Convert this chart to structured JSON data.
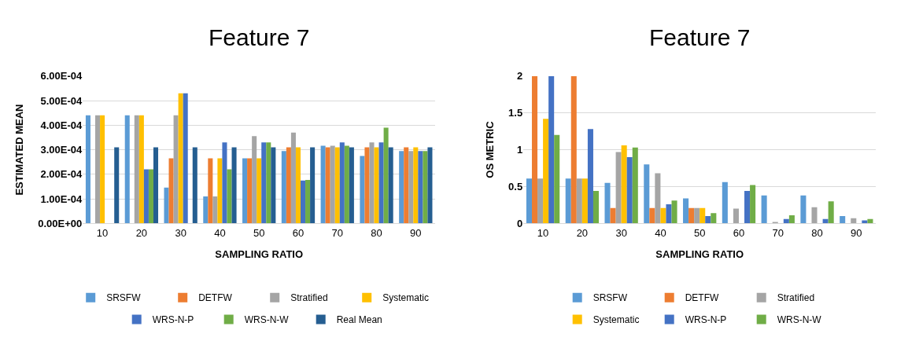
{
  "chart_data": [
    {
      "type": "bar",
      "title": "Feature 7",
      "xlabel": "SAMPLING RATIO",
      "ylabel": "ESTIMATED MEAN",
      "categories": [
        "10",
        "20",
        "30",
        "40",
        "50",
        "60",
        "70",
        "80",
        "90"
      ],
      "series": [
        {
          "name": "SRSFW",
          "color": "#5b9bd5",
          "values": [
            0.00044,
            0.00044,
            0.000146,
            0.00011,
            0.000265,
            0.000295,
            0.000316,
            0.000275,
            0.000295
          ]
        },
        {
          "name": "DETFW",
          "color": "#ed7d31",
          "values": [
            0,
            0,
            0.000265,
            0.000265,
            0.000265,
            0.00031,
            0.00031,
            0.00031,
            0.00031
          ]
        },
        {
          "name": "Stratified",
          "color": "#a5a5a5",
          "values": [
            0.00044,
            0.00044,
            0.00044,
            0.00011,
            0.000355,
            0.00037,
            0.000316,
            0.00033,
            0.000295
          ]
        },
        {
          "name": "Systematic",
          "color": "#ffc000",
          "values": [
            0.00044,
            0.00044,
            0.00053,
            0.000265,
            0.000265,
            0.00031,
            0.00031,
            0.00031,
            0.00031
          ]
        },
        {
          "name": "WRS-N-P",
          "color": "#4472c4",
          "values": [
            0,
            0.00022,
            0.00053,
            0.00033,
            0.00033,
            0.000175,
            0.00033,
            0.00033,
            0.000295
          ]
        },
        {
          "name": "WRS-N-W",
          "color": "#70ad47",
          "values": [
            0,
            0.00022,
            0,
            0.00022,
            0.00033,
            0.000177,
            0.000316,
            0.00039,
            0.000295
          ]
        },
        {
          "name": "Real Mean",
          "color": "#255e91",
          "values": [
            0.00031,
            0.00031,
            0.00031,
            0.00031,
            0.00031,
            0.00031,
            0.00031,
            0.00031,
            0.00031
          ]
        }
      ],
      "ylim": [
        0,
        0.0006
      ],
      "yticks": [
        {
          "value": 0,
          "label": "0.00E+00"
        },
        {
          "value": 0.0001,
          "label": "1.00E-04"
        },
        {
          "value": 0.0002,
          "label": "2.00E-04"
        },
        {
          "value": 0.0003,
          "label": "3.00E-04"
        },
        {
          "value": 0.0004,
          "label": "4.00E-04"
        },
        {
          "value": 0.0005,
          "label": "5.00E-04"
        },
        {
          "value": 0.0006,
          "label": "6.00E-04"
        }
      ],
      "grid": "y",
      "legend": "bottom"
    },
    {
      "type": "bar",
      "title": "Feature 7",
      "xlabel": "SAMPLING RATIO",
      "ylabel": "OS METRIC",
      "categories": [
        "10",
        "20",
        "30",
        "40",
        "50",
        "60",
        "70",
        "80",
        "90"
      ],
      "series": [
        {
          "name": "SRSFW",
          "color": "#5b9bd5",
          "values": [
            0.61,
            0.61,
            0.55,
            0.8,
            0.34,
            0.56,
            0.38,
            0.38,
            0.1
          ]
        },
        {
          "name": "DETFW",
          "color": "#ed7d31",
          "values": [
            2,
            2,
            0.21,
            0.21,
            0.21,
            0,
            0,
            0,
            0
          ]
        },
        {
          "name": "Stratified",
          "color": "#a5a5a5",
          "values": [
            0.61,
            0.61,
            0.97,
            0.68,
            0.21,
            0.2,
            0.02,
            0.22,
            0.07
          ]
        },
        {
          "name": "Systematic",
          "color": "#ffc000",
          "values": [
            1.42,
            0.61,
            1.06,
            0.21,
            0.21,
            0,
            0,
            0,
            0
          ]
        },
        {
          "name": "WRS-N-P",
          "color": "#4472c4",
          "values": [
            2,
            1.28,
            0.9,
            0.26,
            0.1,
            0.44,
            0.06,
            0.06,
            0.04
          ]
        },
        {
          "name": "WRS-N-W",
          "color": "#70ad47",
          "values": [
            1.2,
            0.44,
            1.03,
            0.31,
            0.14,
            0.52,
            0.11,
            0.3,
            0.06
          ]
        }
      ],
      "ylim": [
        0,
        2
      ],
      "yticks": [
        0,
        0.5,
        1,
        1.5,
        2
      ],
      "grid": "y",
      "legend": "bottom"
    }
  ]
}
